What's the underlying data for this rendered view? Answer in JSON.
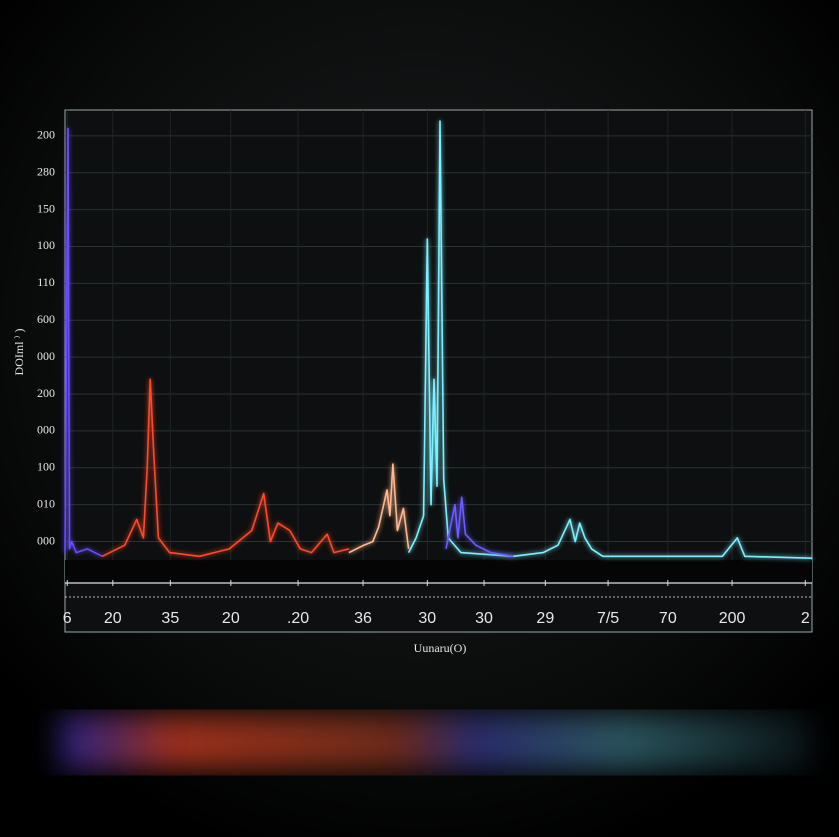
{
  "chart_data": {
    "type": "line",
    "xlabel": "Uunaru(O)",
    "ylabel": "DOIml ⁾ )",
    "xlim": [
      0,
      100
    ],
    "ylim": [
      0,
      12.2
    ],
    "xticks": [
      {
        "value": 0.3,
        "label": "6"
      },
      {
        "value": 6.4,
        "label": "20"
      },
      {
        "value": 14.1,
        "label": "35"
      },
      {
        "value": 22.2,
        "label": "20"
      },
      {
        "value": 31.2,
        "label": ".20"
      },
      {
        "value": 39.9,
        "label": "36"
      },
      {
        "value": 48.5,
        "label": "30"
      },
      {
        "value": 56.1,
        "label": "30"
      },
      {
        "value": 64.3,
        "label": "29"
      },
      {
        "value": 72.7,
        "label": "7/5"
      },
      {
        "value": 80.7,
        "label": "70"
      },
      {
        "value": 89.3,
        "label": "200"
      },
      {
        "value": 99.1,
        "label": "2"
      }
    ],
    "yticks": [
      {
        "value": 0.5,
        "label": "000"
      },
      {
        "value": 1.5,
        "label": "010"
      },
      {
        "value": 2.5,
        "label": "100"
      },
      {
        "value": 3.5,
        "label": "000"
      },
      {
        "value": 4.5,
        "label": "200"
      },
      {
        "value": 5.5,
        "label": "000"
      },
      {
        "value": 6.5,
        "label": "600"
      },
      {
        "value": 7.5,
        "label": "110"
      },
      {
        "value": 8.5,
        "label": "100"
      },
      {
        "value": 9.5,
        "label": "150"
      },
      {
        "value": 10.5,
        "label": "280"
      },
      {
        "value": 11.5,
        "label": "200"
      }
    ],
    "grid": true,
    "series": [
      {
        "color": "#6a4cff",
        "x": [
          0,
          0.4,
          0.6,
          0.9,
          1.5,
          3,
          5
        ],
        "values": [
          0.2,
          11.7,
          0.3,
          0.5,
          0.2,
          0.3,
          0.1
        ]
      },
      {
        "color": "#ff4a2a",
        "x": [
          5,
          8,
          9.6,
          10.5,
          11,
          11.4,
          11.9,
          12.5,
          14,
          18,
          22,
          25,
          26.6,
          27.5,
          28.5,
          30.1,
          31.5,
          33,
          35.1,
          36,
          38
        ],
        "values": [
          0.1,
          0.4,
          1.1,
          0.6,
          2.5,
          4.9,
          2.8,
          0.6,
          0.2,
          0.1,
          0.3,
          0.8,
          1.8,
          0.5,
          1.0,
          0.8,
          0.3,
          0.2,
          0.7,
          0.2,
          0.3
        ]
      },
      {
        "color": "#ffb890",
        "x": [
          38,
          40,
          41.2,
          42,
          43.1,
          43.5,
          43.9,
          44.5,
          45.3,
          46
        ],
        "values": [
          0.2,
          0.4,
          0.5,
          0.9,
          1.9,
          1.2,
          2.6,
          0.8,
          1.4,
          0.3
        ]
      },
      {
        "color": "#7ff0ff",
        "x": [
          46,
          47,
          48,
          48.5,
          49,
          49.4,
          49.8,
          50.2,
          50.7,
          51.3,
          53,
          60,
          64,
          66,
          67.6,
          68.3,
          68.9,
          69.6,
          70.5,
          72,
          80,
          88,
          90,
          91,
          100
        ],
        "values": [
          0.2,
          0.6,
          1.2,
          8.7,
          1.5,
          4.9,
          2.0,
          11.9,
          2.2,
          0.6,
          0.2,
          0.1,
          0.2,
          0.4,
          1.1,
          0.5,
          1.0,
          0.6,
          0.3,
          0.1,
          0.1,
          0.1,
          0.6,
          0.1,
          0.05
        ]
      },
      {
        "color": "#6a5cff",
        "x": [
          51,
          52.2,
          52.6,
          53.1,
          53.6,
          55,
          57,
          60
        ],
        "values": [
          0.3,
          1.5,
          0.6,
          1.7,
          0.7,
          0.4,
          0.2,
          0.1
        ]
      }
    ]
  }
}
